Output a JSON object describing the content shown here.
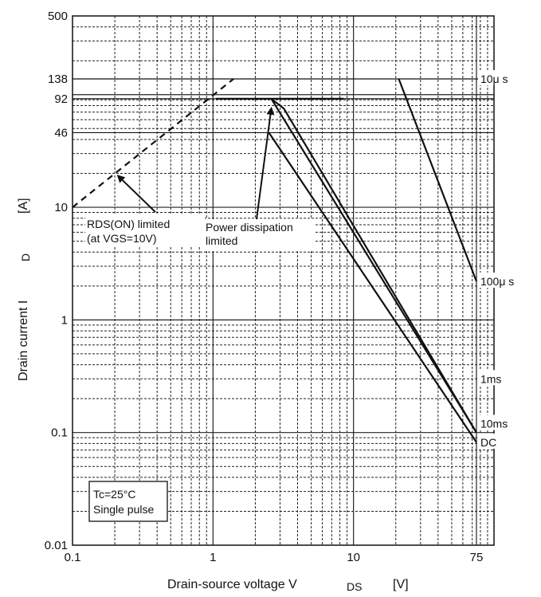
{
  "chart_data": {
    "type": "line",
    "x_scale": "log",
    "y_scale": "log",
    "xlim": [
      0.1,
      100
    ],
    "ylim": [
      0.01,
      500
    ],
    "grid": true,
    "x_ticks": [
      {
        "value": 0.1,
        "label": "0.1"
      },
      {
        "value": 1,
        "label": "1"
      },
      {
        "value": 10,
        "label": "10"
      },
      {
        "value": 75,
        "label": "75"
      }
    ],
    "y_ticks": [
      {
        "value": 0.01,
        "label": "0.01"
      },
      {
        "value": 0.1,
        "label": "0.1"
      },
      {
        "value": 1,
        "label": "1"
      },
      {
        "value": 10,
        "label": "10"
      },
      {
        "value": 46,
        "label": "46"
      },
      {
        "value": 92,
        "label": "92"
      },
      {
        "value": 138,
        "label": "138"
      },
      {
        "value": 500,
        "label": "500"
      }
    ],
    "xlabel": {
      "text": "Drain-source voltage  V",
      "sub": "DS",
      "unit": "[V]"
    },
    "ylabel": {
      "text": "Drain current  I",
      "sub": "D",
      "unit": "[A]"
    },
    "series": [
      {
        "name": "10μs",
        "points": [
          [
            1.05,
            92
          ],
          [
            8.5,
            92
          ]
        ],
        "dashed": false
      },
      {
        "name": "10μs",
        "points": [
          [
            21,
            138
          ],
          [
            75,
            2.2
          ]
        ],
        "dashed": false
      },
      {
        "name": "100μs",
        "points": [
          [
            75,
            2.2
          ],
          [
            75,
            2.2
          ]
        ],
        "dashed": false
      },
      {
        "name": "1ms",
        "points": [
          [
            2.6,
            92
          ],
          [
            3.2,
            75
          ],
          [
            75,
            0.1
          ]
        ],
        "dashed": false
      },
      {
        "name": "10ms",
        "points": [
          [
            2.6,
            92
          ],
          [
            75,
            0.1
          ]
        ],
        "dashed": false
      },
      {
        "name": "DC",
        "points": [
          [
            2.5,
            46
          ],
          [
            75,
            0.082
          ]
        ],
        "dashed": false
      },
      {
        "name": "RDS(ON) limited",
        "points": [
          [
            0.1,
            10
          ],
          [
            1.4,
            138
          ]
        ],
        "dashed": true
      }
    ],
    "extra_hlines": [
      {
        "y": 138,
        "x_from": 0.1,
        "x_to": 100
      },
      {
        "y": 92,
        "x_from": 0.1,
        "x_to": 100
      },
      {
        "y": 46,
        "x_from": 0.1,
        "x_to": 100
      }
    ],
    "series_labels": [
      {
        "text": "10μs",
        "x": 75,
        "y": 138
      },
      {
        "text": "100μs",
        "x": 75,
        "y": 2.2
      },
      {
        "text": "1ms",
        "x": 75,
        "y": 0.3
      },
      {
        "text": "10ms",
        "x": 75,
        "y": 0.12
      },
      {
        "text": "DC",
        "x": 75,
        "y": 0.082
      }
    ],
    "annotations": [
      {
        "id": "rds",
        "lines": [
          "RDS(ON) limited",
          "(at VGS=10V)"
        ],
        "arrow_to": [
          0.2,
          20
        ]
      },
      {
        "id": "pd",
        "lines": [
          "Power dissipation",
          "limited"
        ],
        "arrow_to": [
          2.6,
          92
        ],
        "arrow_to2": [
          2.5,
          46
        ]
      }
    ],
    "legend_box": {
      "lines": [
        "Tc=25°C",
        "Single pulse"
      ],
      "placement": "bottom-left"
    }
  }
}
